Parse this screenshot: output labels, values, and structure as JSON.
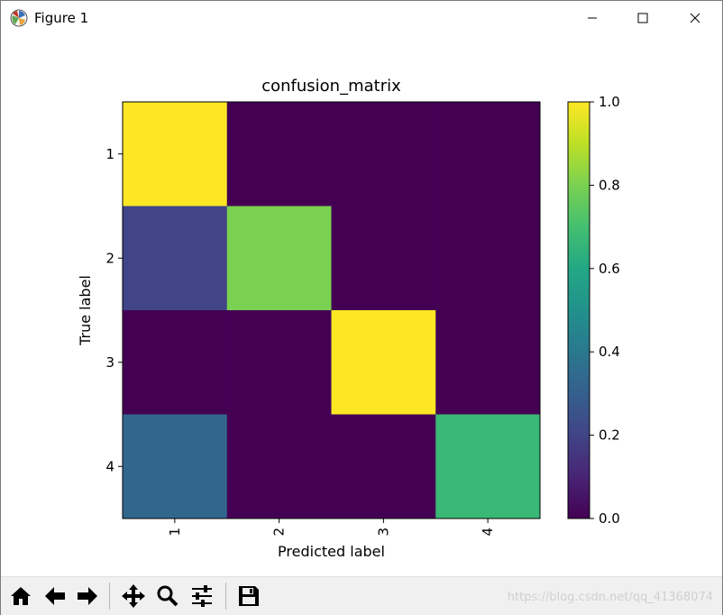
{
  "window": {
    "title": "Figure 1",
    "icons": [
      "app-icon",
      "minimize-icon",
      "maximize-icon",
      "close-icon"
    ]
  },
  "chart_data": {
    "type": "heatmap",
    "title": "confusion_matrix",
    "xlabel": "Predicted label",
    "ylabel": "True label",
    "x_ticks": [
      "1",
      "2",
      "3",
      "4"
    ],
    "y_ticks": [
      "1",
      "2",
      "3",
      "4"
    ],
    "values": [
      [
        1.0,
        0.0,
        0.0,
        0.0
      ],
      [
        0.2,
        0.8,
        0.0,
        0.0
      ],
      [
        0.0,
        0.0,
        1.0,
        0.0
      ],
      [
        0.33,
        0.0,
        0.0,
        0.67
      ]
    ],
    "colormap": "viridis",
    "colorbar": {
      "range": [
        0.0,
        1.0
      ],
      "ticks": [
        "0.0",
        "0.2",
        "0.4",
        "0.6",
        "0.8",
        "1.0"
      ]
    }
  },
  "toolbar": {
    "buttons": [
      "home-icon",
      "back-icon",
      "forward-icon",
      "pan-icon",
      "zoom-icon",
      "configure-subplots-icon",
      "save-icon"
    ]
  },
  "watermark": "https://blog.csdn.net/qq_41368074"
}
